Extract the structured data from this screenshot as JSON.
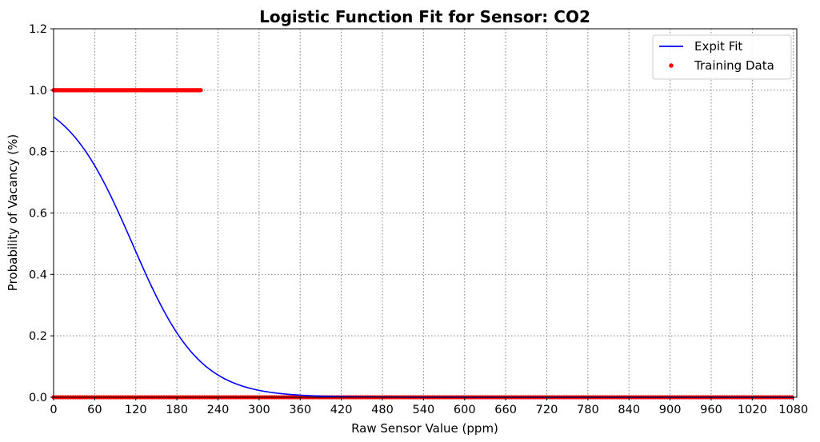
{
  "chart_data": {
    "type": "scatter",
    "title": "Logistic Function Fit for Sensor: CO2",
    "xlabel": "Raw Sensor Value (ppm)",
    "ylabel": "Probability of Vacancy (%)",
    "xlim": [
      0,
      1085
    ],
    "ylim": [
      0.0,
      1.2
    ],
    "xticks": [
      0,
      60,
      120,
      180,
      240,
      300,
      360,
      420,
      480,
      540,
      600,
      660,
      720,
      780,
      840,
      900,
      960,
      1020,
      1080
    ],
    "yticks": [
      "0.0",
      "0.2",
      "0.4",
      "0.6",
      "0.8",
      "1.0",
      "1.2"
    ],
    "grid": true,
    "grid_style": "dotted",
    "legend_position": "top-right",
    "series": [
      {
        "name": "Expit Fit",
        "kind": "line",
        "color": "#0000ff",
        "model": "logistic",
        "x_start": 0,
        "x_end": 1080,
        "y_at_0": 0.913,
        "midpoint": 115,
        "slope": -0.0204
      },
      {
        "name": "Training Data",
        "kind": "points",
        "color": "#ff0000",
        "groups": [
          {
            "y": 1.0,
            "x_range": [
              0,
              215
            ]
          },
          {
            "y": 0.0,
            "x_range": [
              0,
              1080
            ]
          }
        ]
      }
    ],
    "legend": [
      {
        "label": "Expit Fit",
        "color": "#0000ff",
        "marker": "line"
      },
      {
        "label": "Training Data",
        "color": "#ff0000",
        "marker": "dot"
      }
    ]
  }
}
